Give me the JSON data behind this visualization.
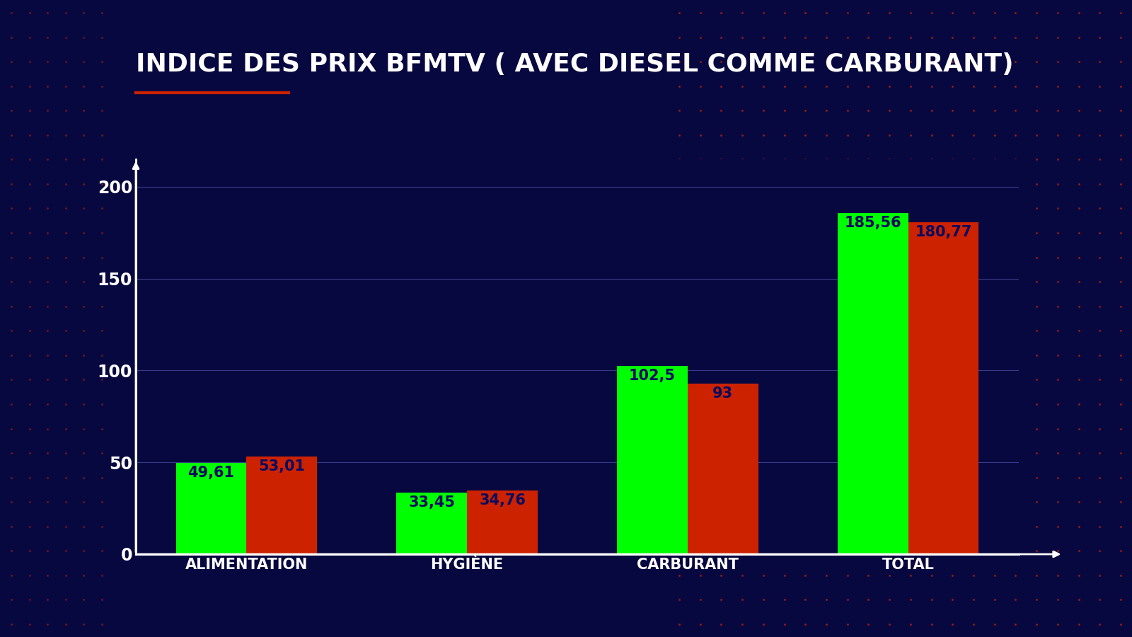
{
  "title": "INDICE DES PRIX BFMTV ( AVEC DIESEL COMME CARBURANT)",
  "categories": [
    "ALIMENTATION",
    "HYGIÈNE",
    "CARBURANT",
    "TOTAL"
  ],
  "green_values": [
    49.61,
    33.45,
    102.5,
    185.56
  ],
  "red_values": [
    53.01,
    34.76,
    93.0,
    180.77
  ],
  "green_labels": [
    "49,61",
    "33,45",
    "102,5",
    "185,56"
  ],
  "red_labels": [
    "53,01",
    "34,76",
    "93",
    "180,77"
  ],
  "green_color": "#00ff00",
  "red_color": "#cc2200",
  "bg_color": "#080840",
  "title_color": "#ffffff",
  "label_color": "#0a0a60",
  "axis_color": "#ffffff",
  "tick_color": "#ffffff",
  "grid_color": "#3a3a8a",
  "red_underline_color": "#cc2200",
  "dot_color": "#cc2200",
  "ylim": [
    0,
    215
  ],
  "yticks": [
    0,
    50,
    100,
    150,
    200
  ],
  "bar_width": 0.32,
  "title_fontsize": 26,
  "label_fontsize": 15,
  "tick_fontsize": 17,
  "cat_fontsize": 15
}
